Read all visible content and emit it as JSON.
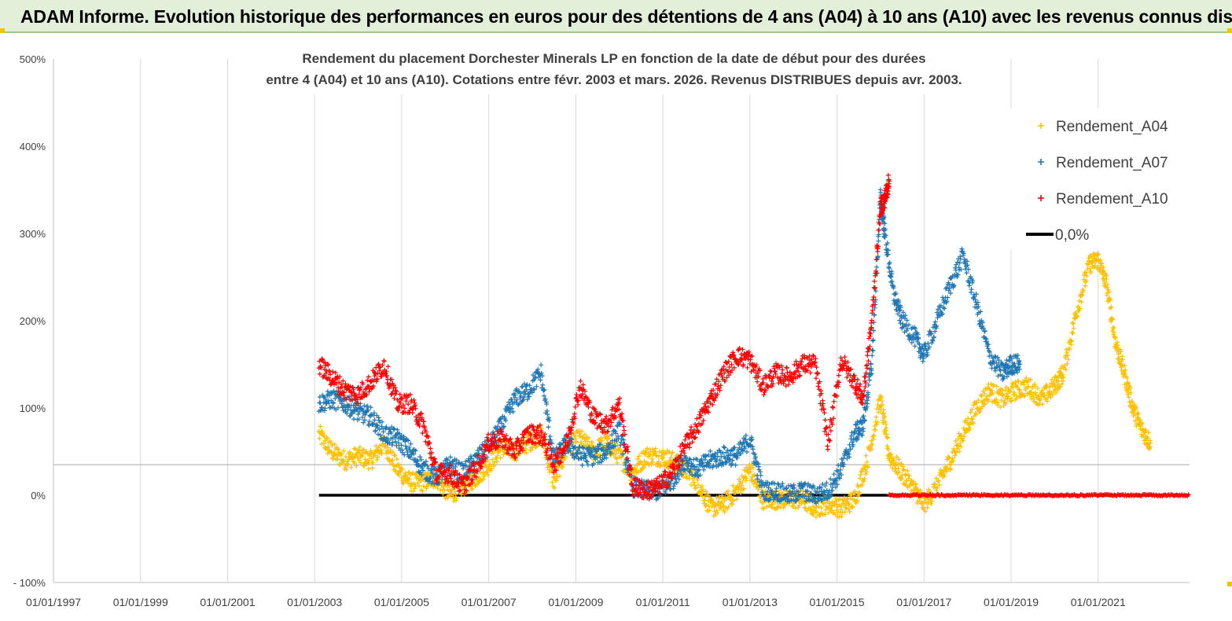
{
  "header": {
    "title": "ADAM Informe. Evolution historique des performances en euros pour des détentions de 4 ans (A04) à 10 ans (A10) avec les revenus connus distribués"
  },
  "chart_data": {
    "type": "scatter",
    "title_lines": [
      "Rendement du placement Dorchester Minerals LP en fonction de la date de début pour des durées",
      "entre 4 (A04) et 10 ans (A10). Cotations entre févr. 2003 et mars. 2026. Revenus DISTRIBUES depuis avr. 2003."
    ],
    "x_tick_labels": [
      "01/01/1997",
      "01/01/1999",
      "01/01/2001",
      "01/01/2003",
      "01/01/2005",
      "01/01/2007",
      "01/01/2009",
      "01/01/2011",
      "01/01/2013",
      "01/01/2015",
      "01/01/2017",
      "01/01/2019",
      "01/01/2021"
    ],
    "x_range": [
      1997.0,
      2023.1
    ],
    "y_tick_labels": [
      "- 100%",
      "0%",
      "100%",
      "200%",
      "300%",
      "400%",
      "500%"
    ],
    "y_range": [
      -100,
      500
    ],
    "y_reference_line": 35,
    "legend_position": "top-right",
    "legend": [
      {
        "name": "Rendement_A04",
        "color": "#ffc000",
        "marker": "+"
      },
      {
        "name": "Rendement_A07",
        "color": "#1f77b4",
        "marker": "+"
      },
      {
        "name": "Rendement_A10",
        "color": "#ff0000",
        "marker": "+"
      },
      {
        "name": "0,0%",
        "color": "#000000",
        "marker": "line"
      }
    ],
    "series": [
      {
        "name": "Rendement_A04",
        "color": "#ffc000",
        "x": [
          2003.1,
          2003.4,
          2003.7,
          2004.0,
          2004.3,
          2004.6,
          2004.9,
          2005.2,
          2005.5,
          2005.8,
          2006.1,
          2006.4,
          2006.7,
          2007.0,
          2007.3,
          2007.6,
          2007.9,
          2008.2,
          2008.5,
          2008.8,
          2009.1,
          2009.4,
          2009.7,
          2010.0,
          2010.3,
          2010.6,
          2010.9,
          2011.2,
          2011.5,
          2011.8,
          2012.1,
          2012.4,
          2012.7,
          2013.0,
          2013.3,
          2013.6,
          2013.9,
          2014.2,
          2014.5,
          2014.8,
          2015.1,
          2015.4,
          2015.7,
          2016.0,
          2016.2,
          2016.5,
          2016.8,
          2017.0,
          2017.3,
          2017.6,
          2017.9,
          2018.2,
          2018.5,
          2018.8,
          2019.1,
          2019.4,
          2019.7,
          2020.0,
          2020.2,
          2020.5,
          2020.8,
          2021.0,
          2021.2,
          2021.4,
          2021.6,
          2021.8,
          2022.0,
          2022.2
        ],
        "y": [
          70,
          50,
          40,
          45,
          40,
          60,
          30,
          15,
          15,
          20,
          0,
          10,
          20,
          35,
          55,
          50,
          60,
          70,
          15,
          55,
          65,
          50,
          60,
          45,
          25,
          45,
          45,
          40,
          30,
          15,
          -15,
          -10,
          5,
          30,
          -5,
          -5,
          -5,
          -5,
          -15,
          -10,
          -15,
          -5,
          40,
          110,
          45,
          25,
          5,
          -10,
          10,
          40,
          70,
          100,
          120,
          110,
          120,
          125,
          110,
          125,
          140,
          210,
          265,
          270,
          240,
          175,
          140,
          100,
          75,
          60
        ]
      },
      {
        "name": "Rendement_A07",
        "color": "#1f77b4",
        "x": [
          2003.1,
          2003.4,
          2003.7,
          2004.0,
          2004.3,
          2004.6,
          2004.9,
          2005.2,
          2005.5,
          2005.8,
          2006.1,
          2006.4,
          2006.7,
          2007.0,
          2007.3,
          2007.6,
          2007.9,
          2008.2,
          2008.5,
          2008.8,
          2009.1,
          2009.4,
          2009.7,
          2010.0,
          2010.3,
          2010.6,
          2010.9,
          2011.2,
          2011.5,
          2011.8,
          2012.1,
          2012.4,
          2012.7,
          2013.0,
          2013.3,
          2013.6,
          2013.9,
          2014.2,
          2014.5,
          2014.8,
          2015.1,
          2015.4,
          2015.6,
          2015.8,
          2016.0,
          2016.1,
          2016.3,
          2016.5,
          2016.8,
          2017.0,
          2017.3,
          2017.6,
          2017.9,
          2018.2,
          2018.5,
          2018.8,
          2019.0,
          2019.2
        ],
        "y": [
          105,
          110,
          105,
          95,
          90,
          70,
          65,
          50,
          30,
          20,
          35,
          25,
          40,
          55,
          80,
          110,
          120,
          140,
          40,
          60,
          45,
          45,
          50,
          75,
          10,
          5,
          5,
          15,
          40,
          30,
          40,
          45,
          45,
          65,
          5,
          5,
          0,
          5,
          0,
          5,
          30,
          70,
          80,
          150,
          340,
          300,
          230,
          200,
          180,
          160,
          200,
          240,
          275,
          220,
          160,
          140,
          150,
          150
        ]
      },
      {
        "name": "Rendement_A10",
        "color": "#ff0000",
        "x": [
          2003.1,
          2003.4,
          2003.7,
          2004.0,
          2004.3,
          2004.6,
          2004.9,
          2005.2,
          2005.5,
          2005.8,
          2006.1,
          2006.4,
          2006.7,
          2007.0,
          2007.3,
          2007.6,
          2007.9,
          2008.2,
          2008.5,
          2008.8,
          2009.1,
          2009.4,
          2009.7,
          2010.0,
          2010.3,
          2010.6,
          2010.9,
          2011.2,
          2011.5,
          2011.8,
          2012.1,
          2012.4,
          2012.7,
          2013.0,
          2013.3,
          2013.6,
          2013.9,
          2014.2,
          2014.5,
          2014.8,
          2015.1,
          2015.4,
          2015.6,
          2015.8,
          2016.0,
          2016.1,
          2016.2
        ],
        "y": [
          150,
          135,
          120,
          115,
          130,
          150,
          105,
          105,
          80,
          25,
          25,
          10,
          30,
          60,
          65,
          50,
          70,
          70,
          35,
          60,
          125,
          90,
          80,
          105,
          10,
          5,
          10,
          25,
          55,
          80,
          110,
          140,
          160,
          155,
          125,
          140,
          135,
          150,
          150,
          60,
          155,
          130,
          110,
          200,
          330,
          340,
          360
        ]
      },
      {
        "name": "0,0%",
        "color": "#000000",
        "x": [
          2003.1,
          2023.1
        ],
        "y": [
          0,
          0
        ]
      }
    ]
  }
}
